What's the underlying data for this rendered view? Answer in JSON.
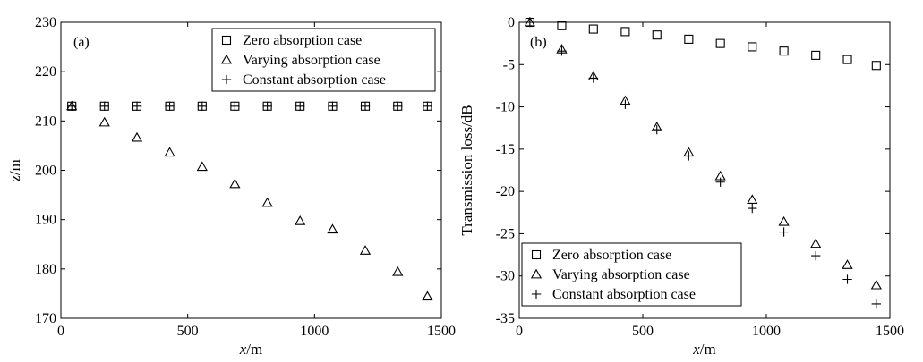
{
  "chart_data": [
    {
      "type": "scatter",
      "panel_tag": "(a)",
      "xlabel": "x/m",
      "xlabel_var": "x",
      "xlabel_unit": "/m",
      "ylabel": "z/m",
      "ylabel_var": "z",
      "ylabel_unit": "/m",
      "xlim": [
        0,
        1500
      ],
      "ylim": [
        170,
        230
      ],
      "xticks": [
        0,
        500,
        1000,
        1500
      ],
      "yticks": [
        170,
        180,
        190,
        200,
        210,
        220,
        230
      ],
      "grid": false,
      "legend_position": "top-right",
      "series": [
        {
          "name": "Zero absorption case",
          "marker": "square",
          "x": [
            43,
            172,
            300,
            429,
            557,
            686,
            814,
            943,
            1071,
            1200,
            1328,
            1445
          ],
          "y": [
            213,
            213,
            213,
            213,
            213,
            213,
            213,
            213,
            213,
            213,
            213,
            213
          ]
        },
        {
          "name": "Varying absorption case",
          "marker": "triangle",
          "x": [
            43,
            172,
            300,
            429,
            557,
            686,
            814,
            943,
            1071,
            1200,
            1328,
            1445
          ],
          "y": [
            213,
            209.7,
            206.6,
            203.6,
            200.7,
            197.2,
            193.4,
            189.7,
            188,
            183.7,
            179.4,
            174.4
          ]
        },
        {
          "name": "Constant absorption case",
          "marker": "plus",
          "x": [
            43,
            172,
            300,
            429,
            557,
            686,
            814,
            943,
            1071,
            1200,
            1328,
            1445
          ],
          "y": [
            213,
            213,
            213,
            213,
            213,
            213,
            213,
            213,
            213,
            213,
            213,
            213
          ]
        }
      ]
    },
    {
      "type": "scatter",
      "panel_tag": "(b)",
      "xlabel": "x/m",
      "xlabel_var": "x",
      "xlabel_unit": "/m",
      "ylabel": "Transmission loss/dB",
      "xlim": [
        0,
        1500
      ],
      "ylim": [
        -35,
        0
      ],
      "xticks": [
        0,
        500,
        1000,
        1500
      ],
      "yticks": [
        -35,
        -30,
        -25,
        -20,
        -15,
        -10,
        -5,
        0
      ],
      "grid": false,
      "legend_position": "bottom-left",
      "series": [
        {
          "name": "Zero absorption case",
          "marker": "square",
          "x": [
            43,
            172,
            300,
            429,
            557,
            686,
            814,
            943,
            1071,
            1200,
            1328,
            1445
          ],
          "y": [
            0,
            -0.4,
            -0.8,
            -1.1,
            -1.5,
            -2,
            -2.5,
            -2.9,
            -3.4,
            -3.9,
            -4.4,
            -5.1
          ]
        },
        {
          "name": "Varying absorption case",
          "marker": "triangle",
          "x": [
            43,
            172,
            300,
            429,
            557,
            686,
            814,
            943,
            1071,
            1200,
            1328,
            1445
          ],
          "y": [
            0,
            -3.2,
            -6.4,
            -9.3,
            -12.4,
            -15.4,
            -18.2,
            -21,
            -23.6,
            -26.2,
            -28.7,
            -31.1
          ]
        },
        {
          "name": "Constant absorption case",
          "marker": "plus",
          "x": [
            43,
            172,
            300,
            429,
            557,
            686,
            814,
            943,
            1071,
            1200,
            1328,
            1445
          ],
          "y": [
            0,
            -3.4,
            -6.6,
            -9.7,
            -12.7,
            -15.8,
            -18.9,
            -22,
            -24.8,
            -27.6,
            -30.4,
            -33.3
          ]
        }
      ]
    }
  ]
}
